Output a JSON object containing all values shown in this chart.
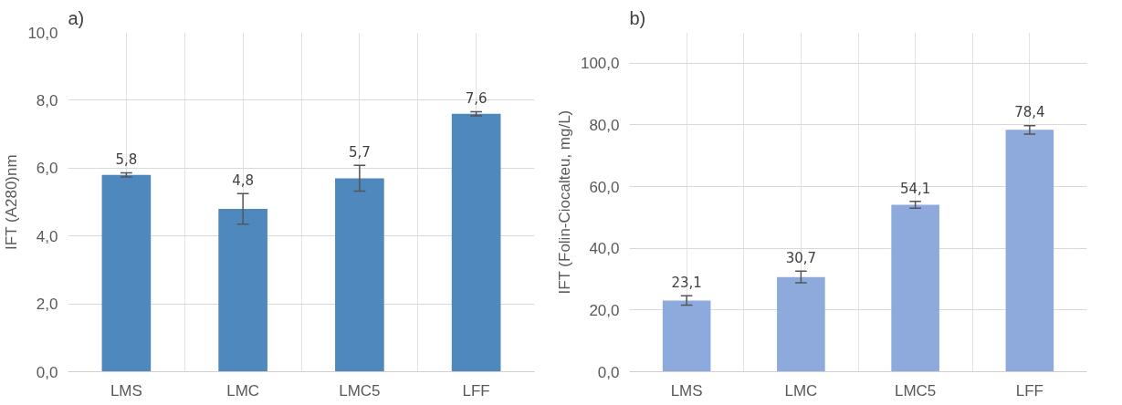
{
  "chart_data": [
    {
      "type": "bar",
      "annotations": [
        "a)"
      ],
      "ylabel": "IFT (A280)nm",
      "categories": [
        "LMS",
        "LMC",
        "LMC5",
        "LFF"
      ],
      "values": [
        5.8,
        4.8,
        5.7,
        7.6
      ],
      "value_labels": [
        "5,8",
        "4,8",
        "5,7",
        "7,6"
      ],
      "errors": [
        0.06,
        0.45,
        0.38,
        0.06
      ],
      "color": "#4f88bd",
      "ylim": [
        0,
        10
      ],
      "yticks": [
        {
          "value": 0,
          "label": "0,0"
        },
        {
          "value": 2,
          "label": "2,0"
        },
        {
          "value": 4,
          "label": "4,0"
        },
        {
          "value": 6,
          "label": "6,0"
        },
        {
          "value": 8,
          "label": "8,0"
        },
        {
          "value": 10,
          "label": "10,0"
        }
      ],
      "grid": true
    },
    {
      "type": "bar",
      "annotations": [
        "b)"
      ],
      "ylabel": "IFT (Folin-Ciocalteu, mg/L)",
      "categories": [
        "LMS",
        "LMC",
        "LMC5",
        "LFF"
      ],
      "values": [
        23.1,
        30.7,
        54.1,
        78.4
      ],
      "value_labels": [
        "23,1",
        "30,7",
        "54,1",
        "78,4"
      ],
      "errors": [
        1.5,
        1.9,
        1.1,
        1.4
      ],
      "color": "#8eaadc",
      "ylim": [
        0,
        110
      ],
      "yticks": [
        {
          "value": 0,
          "label": "0,0"
        },
        {
          "value": 20,
          "label": "20,0"
        },
        {
          "value": 40,
          "label": "40,0"
        },
        {
          "value": 60,
          "label": "60,0"
        },
        {
          "value": 80,
          "label": "80,0"
        },
        {
          "value": 100,
          "label": "100,0"
        }
      ],
      "grid": true
    }
  ]
}
